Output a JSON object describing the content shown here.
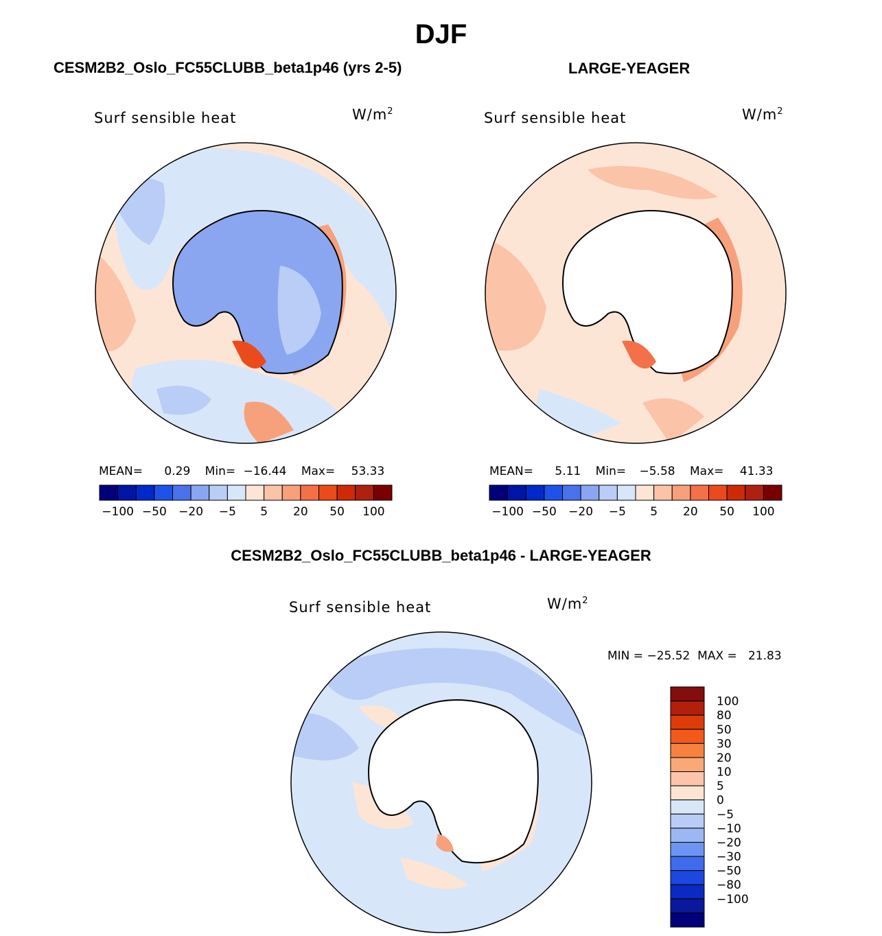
{
  "title": "DJF",
  "panel_left": {
    "case_title": "CESM2B2_Oslo_FC55CLUBB_beta1p46 (yrs 2-5)",
    "variable": "Surf  sensible  heat",
    "units": "W/m",
    "units_exp": "2",
    "mean_label": "MEAN=",
    "mean_value": "0.29",
    "min_label": "Min=",
    "min_value": "−16.44",
    "max_label": "Max=",
    "max_value": "53.33"
  },
  "panel_right": {
    "case_title": "LARGE-YEAGER",
    "variable": "Surf  sensible  heat",
    "units": "W/m",
    "units_exp": "2",
    "mean_label": "MEAN=",
    "mean_value": "5.11",
    "min_label": "Min=",
    "min_value": "−5.58",
    "max_label": "Max=",
    "max_value": "41.33"
  },
  "panel_diff": {
    "case_title": "CESM2B2_Oslo_FC55CLUBB_beta1p46 - LARGE-YEAGER",
    "variable": "Surf  sensible  heat",
    "units": "W/m",
    "units_exp": "2",
    "minmax_text": "MIN = −25.52  MAX =   21.83"
  },
  "colorbar_horizontal": {
    "colors": [
      "#00007a",
      "#0015a6",
      "#0029cc",
      "#1f52e8",
      "#4a72eb",
      "#8aa6f0",
      "#b9cdf6",
      "#d8e6f9",
      "#fde5d6",
      "#fbc3a8",
      "#f7a07c",
      "#f47048",
      "#eb4a1a",
      "#cd2a06",
      "#b0200f",
      "#7a0000"
    ],
    "tick_labels": [
      "−100",
      "−50",
      "−20",
      "−5",
      "5",
      "20",
      "50",
      "100"
    ]
  },
  "colorbar_vertical": {
    "colors": [
      "#840d0d",
      "#b21f0a",
      "#dc3c08",
      "#f25a1c",
      "#f6823f",
      "#f9a878",
      "#fcc4aa",
      "#fde4d2",
      "#d8e6f8",
      "#b8cdf6",
      "#9cb8f3",
      "#6d95ef",
      "#3e6cec",
      "#1c47e0",
      "#0a2bc1",
      "#0a199b",
      "#02007a"
    ],
    "tick_labels": [
      "100",
      "80",
      "50",
      "30",
      "20",
      "10",
      "5",
      "0",
      "−5",
      "−10",
      "−20",
      "−30",
      "−50",
      "−80",
      "−100"
    ]
  },
  "colors": {
    "neg_light": "#d8e6f9",
    "neg_mid": "#b9cdf6",
    "neg_strong": "#8aa6f0",
    "pos_light": "#fde5d6",
    "pos_mid": "#fbc3a8",
    "pos_strong": "#f47048",
    "land": "#ffffff"
  }
}
